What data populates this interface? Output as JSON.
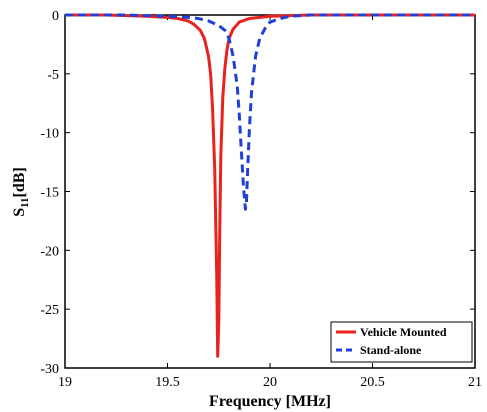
{
  "chart_data": {
    "type": "line",
    "xlabel": "Frequency [MHz]",
    "ylabel": "S",
    "ylabel_subscript": "11",
    "ylabel_unit": "[dB]",
    "xlim": [
      19,
      21
    ],
    "ylim": [
      -30,
      0
    ],
    "xticks": [
      "19",
      "19.5",
      "20",
      "20.5",
      "21"
    ],
    "yticks": [
      "0",
      "-5",
      "-10",
      "-15",
      "-20",
      "-25",
      "-30"
    ],
    "grid": false,
    "legend_position": "bottom-right",
    "series": [
      {
        "name": "Vehicle Mounted",
        "color": "#e8231f",
        "style": "solid",
        "x": [
          19.0,
          19.2,
          19.4,
          19.5,
          19.55,
          19.6,
          19.63,
          19.66,
          19.68,
          19.7,
          19.71,
          19.72,
          19.73,
          19.74,
          19.745,
          19.75,
          19.755,
          19.76,
          19.77,
          19.78,
          19.79,
          19.8,
          19.82,
          19.85,
          19.9,
          20.0,
          20.2,
          20.5,
          21.0
        ],
        "y": [
          0,
          0,
          -0.1,
          -0.2,
          -0.3,
          -0.5,
          -0.8,
          -1.3,
          -2.0,
          -3.5,
          -5.0,
          -8.0,
          -13.0,
          -22.0,
          -29.0,
          -26.0,
          -18.0,
          -12.0,
          -7.0,
          -4.5,
          -3.0,
          -2.0,
          -1.2,
          -0.6,
          -0.3,
          -0.1,
          0,
          0,
          0
        ]
      },
      {
        "name": "Stand-alone",
        "color": "#1f3fd8",
        "style": "dashed",
        "x": [
          19.0,
          19.3,
          19.5,
          19.6,
          19.65,
          19.7,
          19.75,
          19.78,
          19.8,
          19.82,
          19.84,
          19.85,
          19.86,
          19.87,
          19.88,
          19.885,
          19.89,
          19.9,
          19.91,
          19.93,
          19.95,
          19.98,
          20.0,
          20.05,
          20.1,
          20.2,
          20.5,
          21.0
        ],
        "y": [
          0,
          0,
          -0.1,
          -0.2,
          -0.3,
          -0.5,
          -0.9,
          -1.3,
          -2.0,
          -3.5,
          -6.0,
          -8.5,
          -11.5,
          -14.5,
          -16.5,
          -16.0,
          -13.5,
          -9.5,
          -6.5,
          -3.5,
          -2.0,
          -1.0,
          -0.6,
          -0.3,
          -0.1,
          0,
          0,
          0
        ]
      }
    ]
  }
}
